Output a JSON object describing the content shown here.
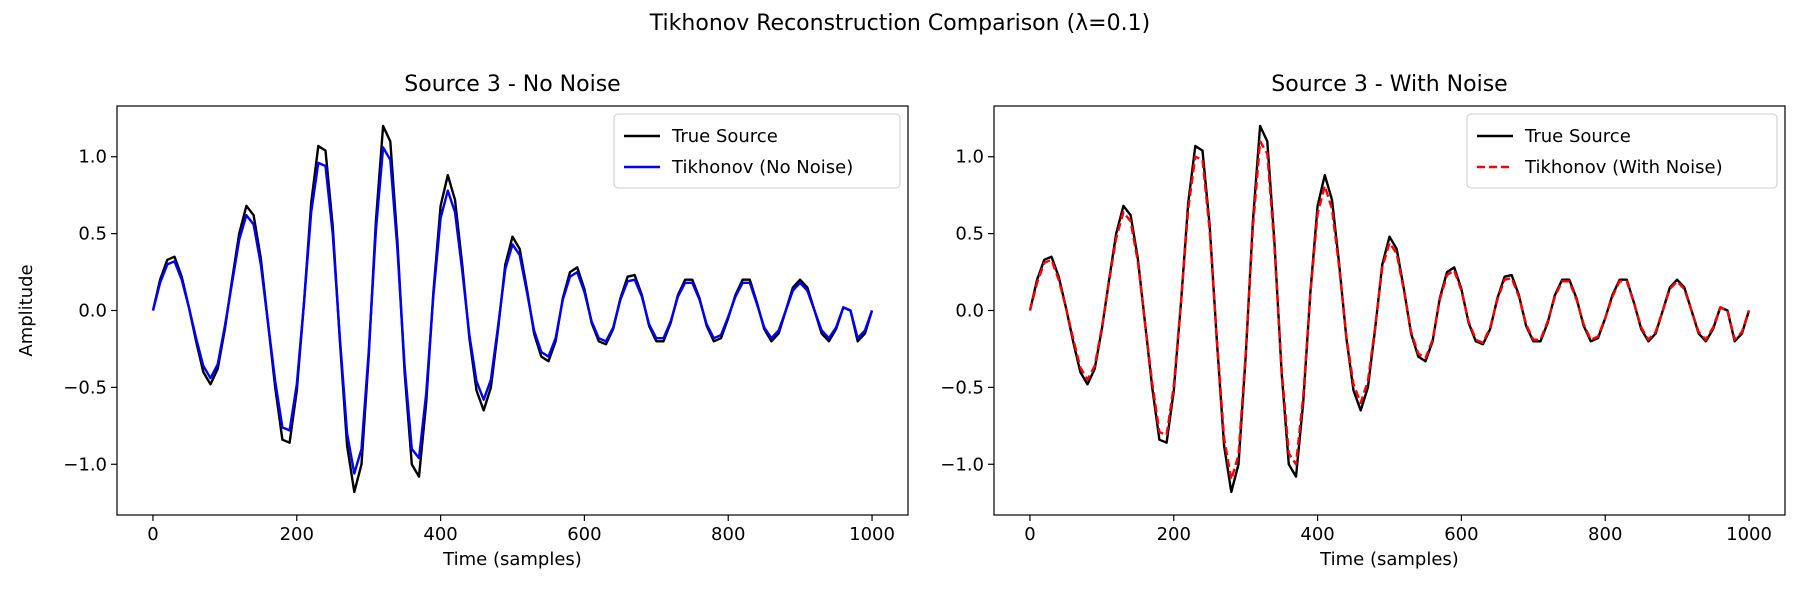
{
  "figure": {
    "suptitle": "Tikhonov Reconstruction Comparison (λ=0.1)"
  },
  "chart_data": [
    {
      "type": "line",
      "title": "Source 3 - No Noise",
      "xlabel": "Time (samples)",
      "ylabel": "Amplitude",
      "xlim": [
        -50,
        1050
      ],
      "ylim": [
        -1.33,
        1.33
      ],
      "xticks": [
        0,
        200,
        400,
        600,
        800,
        1000
      ],
      "xtick_labels": [
        "0",
        "200",
        "400",
        "600",
        "800",
        "1000"
      ],
      "yticks": [
        -1.0,
        -0.5,
        0.0,
        0.5,
        1.0
      ],
      "ytick_labels": [
        "−1.0",
        "−0.5",
        "0.0",
        "0.5",
        "1.0"
      ],
      "grid": false,
      "legend_position": "top-right",
      "series": [
        {
          "name": "True Source",
          "color": "#000000",
          "style": "solid",
          "x": [
            0,
            10,
            20,
            30,
            40,
            50,
            60,
            70,
            80,
            90,
            100,
            110,
            120,
            130,
            140,
            150,
            160,
            170,
            180,
            190,
            200,
            210,
            220,
            230,
            240,
            250,
            260,
            270,
            280,
            290,
            300,
            310,
            320,
            330,
            340,
            350,
            360,
            370,
            380,
            390,
            400,
            410,
            420,
            430,
            440,
            450,
            460,
            470,
            480,
            490,
            500,
            510,
            520,
            530,
            540,
            550,
            560,
            570,
            580,
            590,
            600,
            610,
            620,
            630,
            640,
            650,
            660,
            670,
            680,
            690,
            700,
            710,
            720,
            730,
            740,
            750,
            760,
            770,
            780,
            790,
            800,
            810,
            820,
            830,
            840,
            850,
            860,
            870,
            880,
            890,
            900,
            910,
            920,
            930,
            940,
            950,
            960,
            970,
            980,
            990,
            1000
          ],
          "y": [
            0.0,
            0.2,
            0.33,
            0.35,
            0.22,
            0.02,
            -0.2,
            -0.4,
            -0.48,
            -0.38,
            -0.12,
            0.2,
            0.5,
            0.68,
            0.62,
            0.34,
            -0.08,
            -0.5,
            -0.84,
            -0.86,
            -0.52,
            0.05,
            0.7,
            1.07,
            1.04,
            0.55,
            -0.2,
            -0.88,
            -1.18,
            -1.0,
            -0.3,
            0.58,
            1.2,
            1.1,
            0.45,
            -0.4,
            -1.0,
            -1.08,
            -0.6,
            0.12,
            0.68,
            0.88,
            0.72,
            0.3,
            -0.18,
            -0.52,
            -0.65,
            -0.5,
            -0.12,
            0.3,
            0.48,
            0.4,
            0.14,
            -0.15,
            -0.3,
            -0.33,
            -0.2,
            0.08,
            0.25,
            0.28,
            0.14,
            -0.08,
            -0.2,
            -0.22,
            -0.12,
            0.08,
            0.22,
            0.23,
            0.1,
            -0.1,
            -0.2,
            -0.2,
            -0.08,
            0.1,
            0.2,
            0.2,
            0.08,
            -0.1,
            -0.2,
            -0.18,
            -0.05,
            0.1,
            0.2,
            0.2,
            0.05,
            -0.12,
            -0.2,
            -0.15,
            0.0,
            0.15,
            0.2,
            0.15,
            0.0,
            -0.15,
            -0.2,
            -0.12,
            0.02,
            0.0,
            -0.2,
            -0.15,
            0.0
          ]
        },
        {
          "name": "Tikhonov (No Noise)",
          "color": "#0000ff",
          "style": "solid",
          "x": [
            0,
            10,
            20,
            30,
            40,
            50,
            60,
            70,
            80,
            90,
            100,
            110,
            120,
            130,
            140,
            150,
            160,
            170,
            180,
            190,
            200,
            210,
            220,
            230,
            240,
            250,
            260,
            270,
            280,
            290,
            300,
            310,
            320,
            330,
            340,
            350,
            360,
            370,
            380,
            390,
            400,
            410,
            420,
            430,
            440,
            450,
            460,
            470,
            480,
            490,
            500,
            510,
            520,
            530,
            540,
            550,
            560,
            570,
            580,
            590,
            600,
            610,
            620,
            630,
            640,
            650,
            660,
            670,
            680,
            690,
            700,
            710,
            720,
            730,
            740,
            750,
            760,
            770,
            780,
            790,
            800,
            810,
            820,
            830,
            840,
            850,
            860,
            870,
            880,
            890,
            900,
            910,
            920,
            930,
            940,
            950,
            960,
            970,
            980,
            990,
            1000
          ],
          "y": [
            0.0,
            0.18,
            0.3,
            0.32,
            0.2,
            0.02,
            -0.18,
            -0.36,
            -0.44,
            -0.35,
            -0.1,
            0.18,
            0.46,
            0.62,
            0.56,
            0.3,
            -0.08,
            -0.46,
            -0.76,
            -0.78,
            -0.48,
            0.05,
            0.64,
            0.96,
            0.94,
            0.5,
            -0.18,
            -0.8,
            -1.06,
            -0.9,
            -0.27,
            0.52,
            1.06,
            0.98,
            0.4,
            -0.36,
            -0.9,
            -0.96,
            -0.54,
            0.1,
            0.6,
            0.78,
            0.64,
            0.26,
            -0.16,
            -0.46,
            -0.58,
            -0.45,
            -0.1,
            0.27,
            0.43,
            0.36,
            0.12,
            -0.13,
            -0.27,
            -0.3,
            -0.18,
            0.07,
            0.22,
            0.25,
            0.12,
            -0.07,
            -0.18,
            -0.2,
            -0.11,
            0.07,
            0.19,
            0.2,
            0.09,
            -0.09,
            -0.18,
            -0.18,
            -0.07,
            0.09,
            0.18,
            0.18,
            0.07,
            -0.09,
            -0.18,
            -0.16,
            -0.04,
            0.09,
            0.18,
            0.18,
            0.04,
            -0.11,
            -0.18,
            -0.13,
            0.0,
            0.13,
            0.18,
            0.13,
            0.0,
            -0.13,
            -0.18,
            -0.11,
            0.02,
            0.0,
            -0.18,
            -0.13,
            0.0
          ]
        }
      ]
    },
    {
      "type": "line",
      "title": "Source 3 - With Noise",
      "xlabel": "Time (samples)",
      "ylabel": "",
      "xlim": [
        -50,
        1050
      ],
      "ylim": [
        -1.33,
        1.33
      ],
      "xticks": [
        0,
        200,
        400,
        600,
        800,
        1000
      ],
      "xtick_labels": [
        "0",
        "200",
        "400",
        "600",
        "800",
        "1000"
      ],
      "yticks": [
        -1.0,
        -0.5,
        0.0,
        0.5,
        1.0
      ],
      "ytick_labels": [
        "−1.0",
        "−0.5",
        "0.0",
        "0.5",
        "1.0"
      ],
      "grid": false,
      "legend_position": "top-right",
      "series": [
        {
          "name": "True Source",
          "color": "#000000",
          "style": "solid",
          "x": [
            0,
            10,
            20,
            30,
            40,
            50,
            60,
            70,
            80,
            90,
            100,
            110,
            120,
            130,
            140,
            150,
            160,
            170,
            180,
            190,
            200,
            210,
            220,
            230,
            240,
            250,
            260,
            270,
            280,
            290,
            300,
            310,
            320,
            330,
            340,
            350,
            360,
            370,
            380,
            390,
            400,
            410,
            420,
            430,
            440,
            450,
            460,
            470,
            480,
            490,
            500,
            510,
            520,
            530,
            540,
            550,
            560,
            570,
            580,
            590,
            600,
            610,
            620,
            630,
            640,
            650,
            660,
            670,
            680,
            690,
            700,
            710,
            720,
            730,
            740,
            750,
            760,
            770,
            780,
            790,
            800,
            810,
            820,
            830,
            840,
            850,
            860,
            870,
            880,
            890,
            900,
            910,
            920,
            930,
            940,
            950,
            960,
            970,
            980,
            990,
            1000
          ],
          "y": [
            0.0,
            0.2,
            0.33,
            0.35,
            0.22,
            0.02,
            -0.2,
            -0.4,
            -0.48,
            -0.38,
            -0.12,
            0.2,
            0.5,
            0.68,
            0.62,
            0.34,
            -0.08,
            -0.5,
            -0.84,
            -0.86,
            -0.52,
            0.05,
            0.7,
            1.07,
            1.04,
            0.55,
            -0.2,
            -0.88,
            -1.18,
            -1.0,
            -0.3,
            0.58,
            1.2,
            1.1,
            0.45,
            -0.4,
            -1.0,
            -1.08,
            -0.6,
            0.12,
            0.68,
            0.88,
            0.72,
            0.3,
            -0.18,
            -0.52,
            -0.65,
            -0.5,
            -0.12,
            0.3,
            0.48,
            0.4,
            0.14,
            -0.15,
            -0.3,
            -0.33,
            -0.2,
            0.08,
            0.25,
            0.28,
            0.14,
            -0.08,
            -0.2,
            -0.22,
            -0.12,
            0.08,
            0.22,
            0.23,
            0.1,
            -0.1,
            -0.2,
            -0.2,
            -0.08,
            0.1,
            0.2,
            0.2,
            0.08,
            -0.1,
            -0.2,
            -0.18,
            -0.05,
            0.1,
            0.2,
            0.2,
            0.05,
            -0.12,
            -0.2,
            -0.15,
            0.0,
            0.15,
            0.2,
            0.15,
            0.0,
            -0.15,
            -0.2,
            -0.12,
            0.02,
            0.0,
            -0.2,
            -0.15,
            0.0
          ]
        },
        {
          "name": "Tikhonov (With Noise)",
          "color": "#ff0000",
          "style": "dashed",
          "x": [
            0,
            10,
            20,
            30,
            40,
            50,
            60,
            70,
            80,
            90,
            100,
            110,
            120,
            130,
            140,
            150,
            160,
            170,
            180,
            190,
            200,
            210,
            220,
            230,
            240,
            250,
            260,
            270,
            280,
            290,
            300,
            310,
            320,
            330,
            340,
            350,
            360,
            370,
            380,
            390,
            400,
            410,
            420,
            430,
            440,
            450,
            460,
            470,
            480,
            490,
            500,
            510,
            520,
            530,
            540,
            550,
            560,
            570,
            580,
            590,
            600,
            610,
            620,
            630,
            640,
            650,
            660,
            670,
            680,
            690,
            700,
            710,
            720,
            730,
            740,
            750,
            760,
            770,
            780,
            790,
            800,
            810,
            820,
            830,
            840,
            850,
            860,
            870,
            880,
            890,
            900,
            910,
            920,
            930,
            940,
            950,
            960,
            970,
            980,
            990,
            1000
          ],
          "y": [
            0.0,
            0.18,
            0.31,
            0.33,
            0.2,
            0.02,
            -0.18,
            -0.37,
            -0.45,
            -0.36,
            -0.11,
            0.19,
            0.47,
            0.64,
            0.58,
            0.32,
            -0.08,
            -0.47,
            -0.79,
            -0.81,
            -0.49,
            0.05,
            0.66,
            1.0,
            0.98,
            0.52,
            -0.19,
            -0.83,
            -1.1,
            -0.94,
            -0.28,
            0.54,
            1.1,
            1.02,
            0.42,
            -0.38,
            -0.93,
            -1.0,
            -0.56,
            0.11,
            0.63,
            0.81,
            0.66,
            0.28,
            -0.17,
            -0.48,
            -0.6,
            -0.46,
            -0.11,
            0.28,
            0.44,
            0.37,
            0.13,
            -0.14,
            -0.28,
            -0.31,
            -0.19,
            0.07,
            0.23,
            0.26,
            0.13,
            -0.07,
            -0.19,
            -0.21,
            -0.11,
            0.07,
            0.2,
            0.21,
            0.09,
            -0.09,
            -0.19,
            -0.19,
            -0.07,
            0.09,
            0.19,
            0.19,
            0.07,
            -0.09,
            -0.19,
            -0.17,
            -0.05,
            0.09,
            0.19,
            0.19,
            0.05,
            -0.11,
            -0.19,
            -0.14,
            0.0,
            0.14,
            0.19,
            0.14,
            0.0,
            -0.14,
            -0.19,
            -0.11,
            0.02,
            0.0,
            -0.19,
            -0.14,
            0.0
          ]
        }
      ]
    }
  ]
}
